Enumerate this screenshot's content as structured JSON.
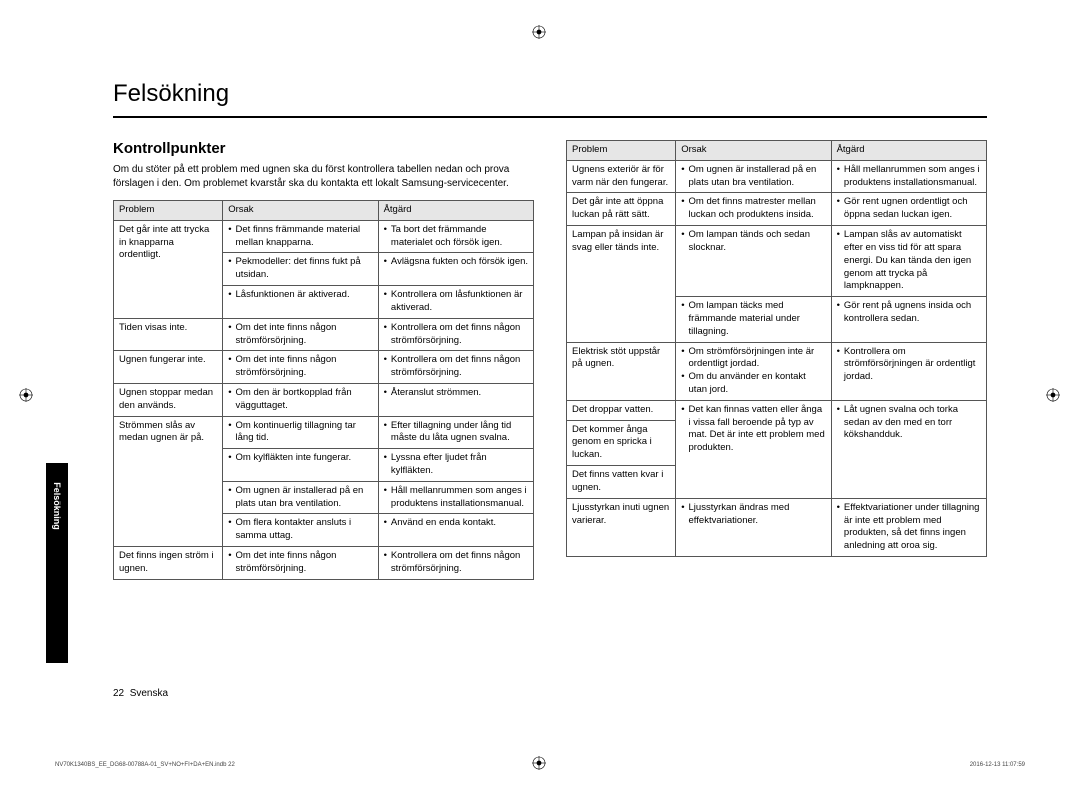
{
  "title": "Felsökning",
  "subtitle": "Kontrollpunkter",
  "intro": "Om du stöter på ett problem med ugnen ska du först kontrollera tabellen nedan och prova förslagen i den. Om problemet kvarstår ska du kontakta ett lokalt Samsung-servicecenter.",
  "headers": {
    "problem": "Problem",
    "cause": "Orsak",
    "action": "Åtgärd"
  },
  "left_rows": [
    {
      "problem": "Det går inte att trycka in knapparna ordentligt.",
      "cells": [
        [
          "Det finns främmande material mellan knapparna.",
          "Ta bort det främmande materialet och försök igen."
        ],
        [
          "Pekmodeller: det finns fukt på utsidan.",
          "Avlägsna fukten och försök igen."
        ],
        [
          "Låsfunktionen är aktiverad.",
          "Kontrollera om låsfunktionen är aktiverad."
        ]
      ]
    },
    {
      "problem": "Tiden visas inte.",
      "cells": [
        [
          "Om det inte finns någon strömförsörjning.",
          "Kontrollera om det finns någon strömförsörjning."
        ]
      ]
    },
    {
      "problem": "Ugnen fungerar inte.",
      "cells": [
        [
          "Om det inte finns någon strömförsörjning.",
          "Kontrollera om det finns någon strömförsörjning."
        ]
      ]
    },
    {
      "problem": "Ugnen stoppar medan den används.",
      "cells": [
        [
          "Om den är bortkopplad från vägguttaget.",
          "Återanslut strömmen."
        ]
      ]
    },
    {
      "problem": "Strömmen slås av medan ugnen är på.",
      "cells": [
        [
          "Om kontinuerlig tillagning tar lång tid.",
          "Efter tillagning under lång tid måste du låta ugnen svalna."
        ],
        [
          "Om kylfläkten inte fungerar.",
          "Lyssna efter ljudet från kylfläkten."
        ],
        [
          "Om ugnen är installerad på en plats utan bra ventilation.",
          "Håll mellanrummen som anges i produktens installationsmanual."
        ],
        [
          "Om flera kontakter ansluts i samma uttag.",
          "Använd en enda kontakt."
        ]
      ]
    },
    {
      "problem": "Det finns ingen ström i ugnen.",
      "cells": [
        [
          "Om det inte finns någon strömförsörjning.",
          "Kontrollera om det finns någon strömförsörjning."
        ]
      ]
    }
  ],
  "right_rows": [
    {
      "problem": "Ugnens exteriör är för varm när den fungerar.",
      "cells": [
        [
          "Om ugnen är installerad på en plats utan bra ventilation.",
          "Håll mellanrummen som anges i produktens installationsmanual."
        ]
      ]
    },
    {
      "problem": "Det går inte att öppna luckan på rätt sätt.",
      "cells": [
        [
          "Om det finns matrester mellan luckan och produktens insida.",
          "Gör rent ugnen ordentligt och öppna sedan luckan igen."
        ]
      ]
    },
    {
      "problem": "Lampan på insidan är svag eller tänds inte.",
      "cells": [
        [
          "Om lampan tänds och sedan slocknar.",
          "Lampan slås av automatiskt efter en viss tid för att spara energi. Du kan tända den igen genom att trycka på lampknappen."
        ],
        [
          "Om lampan täcks med främmande material under tillagning.",
          "Gör rent på ugnens insida och kontrollera sedan."
        ]
      ]
    },
    {
      "problem": "Elektrisk stöt uppstår på ugnen.",
      "cells": [
        [
          "Om strömförsörjningen inte är ordentligt jordad.\nOm du använder en kontakt utan jord.",
          "Kontrollera om strömförsörjningen är ordentligt jordad."
        ]
      ]
    },
    {
      "problem": "Det droppar vatten.",
      "cells": [
        [
          "Det kan finnas vatten eller ånga i vissa fall beroende på typ av mat. Det är inte ett problem med produkten.",
          "Låt ugnen svalna och torka sedan av den med en torr kökshandduk."
        ]
      ],
      "merge_next": 2
    },
    {
      "problem": "Det kommer ånga genom en spricka i luckan.",
      "cells": []
    },
    {
      "problem": "Det finns vatten kvar i ugnen.",
      "cells": []
    },
    {
      "problem": "Ljusstyrkan inuti ugnen varierar.",
      "cells": [
        [
          "Ljusstyrkan ändras med effektvariationer.",
          "Effektvariationer under tillagning är inte ett problem med produkten, så det finns ingen anledning att oroa sig."
        ]
      ]
    }
  ],
  "side_tab": "Felsökning",
  "page_footer": {
    "num": "22",
    "lang": "Svenska"
  },
  "doc_footer": {
    "left": "NV70K1340BS_EE_DG68-00788A-01_SV+NO+FI+DA+EN.indb   22",
    "right": "2016-12-13   11:07:59"
  }
}
